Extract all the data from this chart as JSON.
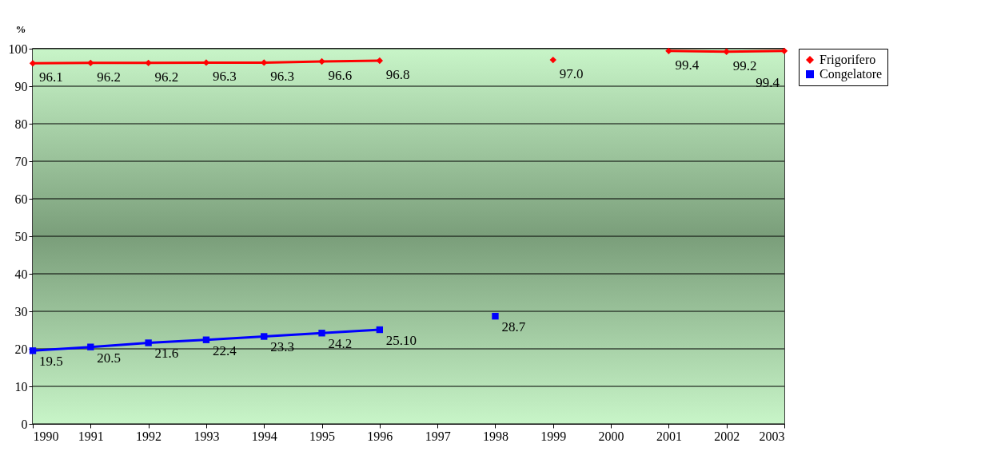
{
  "chart_data": {
    "type": "line",
    "ylabel": "%",
    "x": [
      1990,
      1991,
      1992,
      1993,
      1994,
      1995,
      1996,
      1997,
      1998,
      1999,
      2000,
      2001,
      2002,
      2003
    ],
    "series": [
      {
        "name": "Frigorifero",
        "color": "#ff0000",
        "marker": "diamond",
        "values": [
          96.1,
          96.2,
          96.2,
          96.3,
          96.3,
          96.6,
          96.8,
          null,
          null,
          97.0,
          null,
          99.4,
          99.2,
          99.4
        ],
        "value_labels": [
          "96.1",
          "96.2",
          "96.2",
          "96.3",
          "96.3",
          "96.6",
          "96.8",
          null,
          null,
          "97.0",
          null,
          "99.4",
          "99.2",
          "99.4"
        ]
      },
      {
        "name": "Congelatore",
        "color": "#0000ff",
        "marker": "square",
        "values": [
          19.5,
          20.5,
          21.6,
          22.4,
          23.3,
          24.2,
          25.1,
          null,
          28.7,
          null,
          null,
          null,
          null,
          null
        ],
        "value_labels": [
          "19.5",
          "20.5",
          "21.6",
          "22.4",
          "23.3",
          "24.2",
          "25.10",
          null,
          "28.7",
          null,
          null,
          null,
          null,
          null
        ]
      }
    ],
    "xlim": [
      1990,
      2003
    ],
    "xticks": [
      1990,
      1991,
      1992,
      1993,
      1994,
      1995,
      1996,
      1997,
      1998,
      1999,
      2000,
      2001,
      2002,
      2003
    ],
    "ylim": [
      0,
      100
    ],
    "yticks": [
      0,
      10,
      20,
      30,
      40,
      50,
      60,
      70,
      80,
      90,
      100
    ],
    "grid": "y",
    "legend": "right",
    "line_style": "solid"
  }
}
